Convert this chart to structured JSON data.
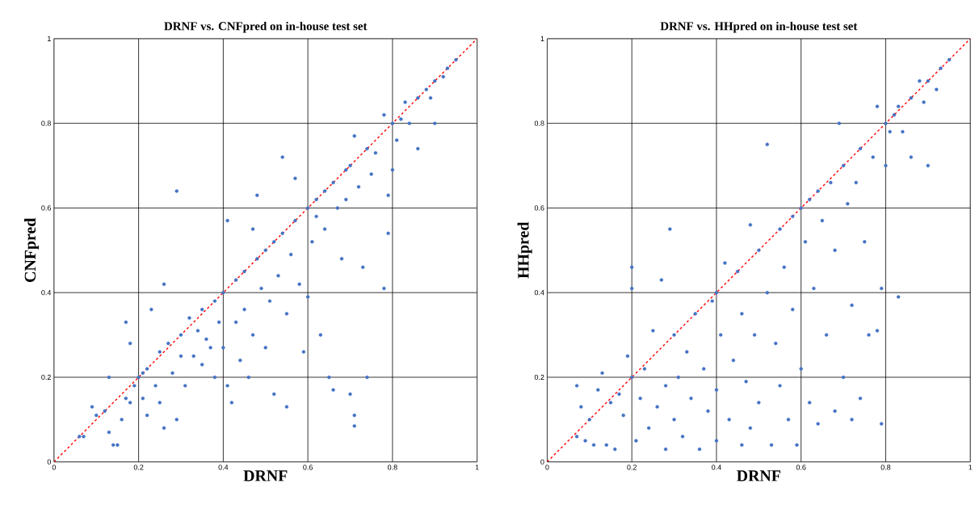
{
  "chart_data": [
    {
      "type": "scatter",
      "title": "DRNF vs. CNFpred on in-house test set",
      "xlabel": "DRNF",
      "ylabel": "CNFpred",
      "xlim": [
        0,
        1
      ],
      "ylim": [
        0,
        1
      ],
      "xticks": [
        0,
        0.2,
        0.4,
        0.6,
        0.8,
        1
      ],
      "yticks": [
        0,
        0.2,
        0.4,
        0.6,
        0.8,
        1
      ],
      "grid": true,
      "legend": false,
      "series": [
        {
          "marker": "circle",
          "color": "#4472c4",
          "x": [
            0.06,
            0.07,
            0.09,
            0.1,
            0.12,
            0.13,
            0.13,
            0.14,
            0.15,
            0.16,
            0.17,
            0.17,
            0.18,
            0.18,
            0.19,
            0.2,
            0.21,
            0.21,
            0.22,
            0.22,
            0.23,
            0.24,
            0.25,
            0.25,
            0.26,
            0.26,
            0.27,
            0.28,
            0.29,
            0.29,
            0.3,
            0.3,
            0.31,
            0.32,
            0.33,
            0.34,
            0.35,
            0.35,
            0.36,
            0.37,
            0.38,
            0.38,
            0.39,
            0.4,
            0.4,
            0.41,
            0.41,
            0.42,
            0.43,
            0.43,
            0.44,
            0.45,
            0.45,
            0.46,
            0.47,
            0.47,
            0.48,
            0.48,
            0.49,
            0.5,
            0.5,
            0.51,
            0.52,
            0.52,
            0.53,
            0.54,
            0.54,
            0.55,
            0.55,
            0.56,
            0.57,
            0.57,
            0.58,
            0.59,
            0.6,
            0.6,
            0.61,
            0.62,
            0.62,
            0.63,
            0.64,
            0.64,
            0.65,
            0.66,
            0.66,
            0.67,
            0.68,
            0.69,
            0.69,
            0.7,
            0.7,
            0.71,
            0.71,
            0.71,
            0.72,
            0.73,
            0.74,
            0.74,
            0.75,
            0.76,
            0.78,
            0.78,
            0.79,
            0.79,
            0.8,
            0.8,
            0.81,
            0.82,
            0.83,
            0.84,
            0.86,
            0.86,
            0.88,
            0.89,
            0.9,
            0.9,
            0.92,
            0.93,
            0.95
          ],
          "values": [
            0.06,
            0.06,
            0.13,
            0.11,
            0.12,
            0.2,
            0.07,
            0.04,
            0.04,
            0.1,
            0.15,
            0.33,
            0.28,
            0.14,
            0.18,
            0.2,
            0.21,
            0.15,
            0.22,
            0.11,
            0.36,
            0.18,
            0.26,
            0.14,
            0.42,
            0.08,
            0.28,
            0.21,
            0.64,
            0.1,
            0.3,
            0.25,
            0.18,
            0.34,
            0.25,
            0.31,
            0.36,
            0.23,
            0.29,
            0.27,
            0.38,
            0.2,
            0.33,
            0.4,
            0.27,
            0.57,
            0.18,
            0.14,
            0.43,
            0.33,
            0.24,
            0.45,
            0.36,
            0.2,
            0.55,
            0.3,
            0.48,
            0.63,
            0.41,
            0.5,
            0.27,
            0.38,
            0.52,
            0.16,
            0.44,
            0.72,
            0.54,
            0.13,
            0.35,
            0.49,
            0.67,
            0.57,
            0.42,
            0.26,
            0.6,
            0.39,
            0.52,
            0.62,
            0.58,
            0.3,
            0.64,
            0.55,
            0.2,
            0.17,
            0.66,
            0.6,
            0.48,
            0.69,
            0.62,
            0.7,
            0.16,
            0.11,
            0.085,
            0.77,
            0.65,
            0.46,
            0.2,
            0.74,
            0.68,
            0.73,
            0.82,
            0.41,
            0.54,
            0.63,
            0.8,
            0.69,
            0.76,
            0.81,
            0.85,
            0.8,
            0.74,
            0.86,
            0.88,
            0.86,
            0.8,
            0.9,
            0.91,
            0.93,
            0.95
          ]
        },
        {
          "type": "line",
          "color": "#ff0000",
          "line_style": "dashed",
          "marker": "none",
          "x": [
            0,
            1
          ],
          "values": [
            0,
            1
          ]
        }
      ]
    },
    {
      "type": "scatter",
      "title": "DRNF vs. HHpred on in-house test set",
      "xlabel": "DRNF",
      "ylabel": "HHpred",
      "xlim": [
        0,
        1
      ],
      "ylim": [
        0,
        1
      ],
      "xticks": [
        0,
        0.2,
        0.4,
        0.6,
        0.8,
        1
      ],
      "yticks": [
        0,
        0.2,
        0.4,
        0.6,
        0.8,
        1
      ],
      "grid": true,
      "legend": false,
      "series": [
        {
          "marker": "circle",
          "color": "#4472c4",
          "x": [
            0.07,
            0.07,
            0.08,
            0.09,
            0.1,
            0.11,
            0.12,
            0.13,
            0.14,
            0.15,
            0.16,
            0.17,
            0.18,
            0.19,
            0.2,
            0.2,
            0.2,
            0.21,
            0.22,
            0.23,
            0.24,
            0.25,
            0.26,
            0.27,
            0.28,
            0.28,
            0.29,
            0.3,
            0.3,
            0.31,
            0.32,
            0.33,
            0.34,
            0.35,
            0.36,
            0.37,
            0.38,
            0.39,
            0.4,
            0.4,
            0.4,
            0.41,
            0.42,
            0.43,
            0.44,
            0.45,
            0.46,
            0.46,
            0.47,
            0.48,
            0.48,
            0.49,
            0.5,
            0.5,
            0.52,
            0.52,
            0.53,
            0.54,
            0.55,
            0.55,
            0.56,
            0.57,
            0.58,
            0.58,
            0.59,
            0.6,
            0.6,
            0.61,
            0.62,
            0.62,
            0.63,
            0.64,
            0.64,
            0.65,
            0.66,
            0.67,
            0.68,
            0.68,
            0.69,
            0.7,
            0.7,
            0.71,
            0.72,
            0.72,
            0.73,
            0.74,
            0.74,
            0.75,
            0.76,
            0.77,
            0.78,
            0.78,
            0.79,
            0.79,
            0.8,
            0.8,
            0.81,
            0.82,
            0.83,
            0.83,
            0.84,
            0.86,
            0.86,
            0.88,
            0.89,
            0.9,
            0.9,
            0.92,
            0.93,
            0.95
          ],
          "values": [
            0.06,
            0.18,
            0.13,
            0.05,
            0.1,
            0.04,
            0.17,
            0.21,
            0.04,
            0.14,
            0.03,
            0.16,
            0.11,
            0.25,
            0.2,
            0.41,
            0.46,
            0.05,
            0.15,
            0.22,
            0.08,
            0.31,
            0.13,
            0.43,
            0.03,
            0.18,
            0.55,
            0.3,
            0.1,
            0.2,
            0.06,
            0.26,
            0.15,
            0.35,
            0.03,
            0.22,
            0.12,
            0.38,
            0.4,
            0.05,
            0.17,
            0.3,
            0.47,
            0.1,
            0.24,
            0.45,
            0.04,
            0.35,
            0.19,
            0.56,
            0.08,
            0.3,
            0.5,
            0.14,
            0.75,
            0.4,
            0.04,
            0.28,
            0.55,
            0.18,
            0.46,
            0.1,
            0.58,
            0.36,
            0.04,
            0.6,
            0.22,
            0.52,
            0.14,
            0.62,
            0.41,
            0.64,
            0.09,
            0.57,
            0.3,
            0.66,
            0.12,
            0.5,
            0.8,
            0.7,
            0.2,
            0.61,
            0.37,
            0.1,
            0.66,
            0.15,
            0.74,
            0.52,
            0.3,
            0.72,
            0.84,
            0.31,
            0.41,
            0.09,
            0.8,
            0.7,
            0.78,
            0.82,
            0.39,
            0.84,
            0.78,
            0.72,
            0.86,
            0.9,
            0.85,
            0.7,
            0.9,
            0.88,
            0.93,
            0.95
          ]
        },
        {
          "type": "line",
          "color": "#ff0000",
          "line_style": "dashed",
          "marker": "none",
          "x": [
            0,
            1
          ],
          "values": [
            0,
            1
          ]
        }
      ]
    }
  ]
}
